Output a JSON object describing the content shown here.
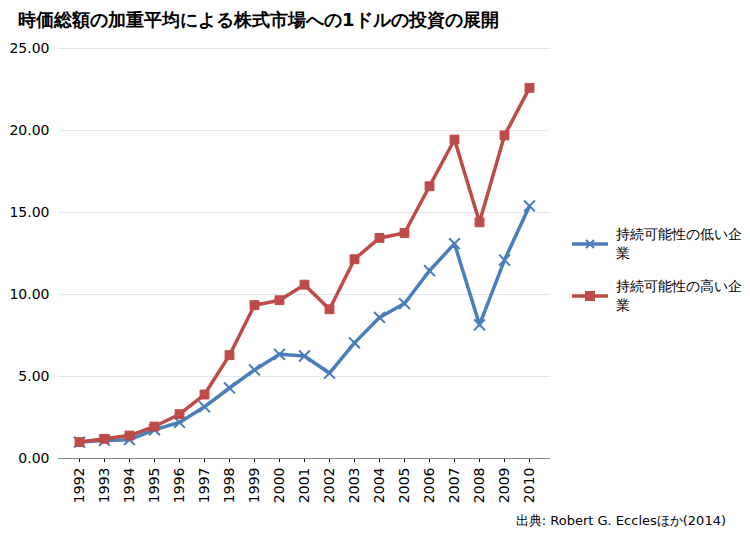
{
  "chart_data": {
    "type": "line",
    "title": "時価総額の加重平均による株式市場への1ドルの投資の展開",
    "source": "出典: Robert G. Ecclesほか(2014)",
    "categories": [
      "1992",
      "1993",
      "1994",
      "1995",
      "1996",
      "1997",
      "1998",
      "1999",
      "2000",
      "2001",
      "2002",
      "2003",
      "2004",
      "2005",
      "2006",
      "2007",
      "2008",
      "2009",
      "2010"
    ],
    "series": [
      {
        "name": "持続可能性の低い企業",
        "color": "#4a7ebb",
        "marker": "x",
        "values": [
          1.0,
          1.1,
          1.15,
          1.75,
          2.2,
          3.15,
          4.3,
          5.4,
          6.35,
          6.25,
          5.2,
          7.05,
          8.6,
          9.45,
          11.45,
          13.1,
          8.15,
          12.1,
          15.4
        ]
      },
      {
        "name": "持続可能性の高い企業",
        "color": "#be4b48",
        "marker": "square",
        "values": [
          1.0,
          1.2,
          1.4,
          1.95,
          2.7,
          3.9,
          6.3,
          9.35,
          9.65,
          10.6,
          9.1,
          12.15,
          13.45,
          13.75,
          16.6,
          19.45,
          14.4,
          19.7,
          22.6
        ]
      }
    ],
    "ylim": [
      0,
      25
    ],
    "yticks": [
      {
        "value": 0,
        "label": "0.00"
      },
      {
        "value": 5,
        "label": "5.00"
      },
      {
        "value": 10,
        "label": "10.00"
      },
      {
        "value": 15,
        "label": "15.00"
      },
      {
        "value": 20,
        "label": "20.00"
      },
      {
        "value": 25,
        "label": "25.00"
      }
    ],
    "grid": true,
    "legend": "right"
  }
}
